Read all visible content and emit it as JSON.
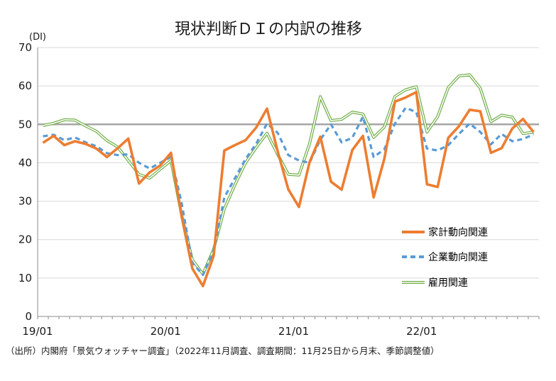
{
  "chart_data": {
    "type": "line",
    "title": "現状判断ＤＩの内訳の推移",
    "yunit": "(DI)",
    "xlabel": "",
    "ylabel": "",
    "ylim": [
      0,
      70
    ],
    "yticks": [
      0,
      10,
      20,
      30,
      40,
      50,
      60,
      70
    ],
    "xtick_labels": [
      "19/01",
      "20/01",
      "21/01",
      "22/01"
    ],
    "x": [
      "2019-01",
      "2019-02",
      "2019-03",
      "2019-04",
      "2019-05",
      "2019-06",
      "2019-07",
      "2019-08",
      "2019-09",
      "2019-10",
      "2019-11",
      "2019-12",
      "2020-01",
      "2020-02",
      "2020-03",
      "2020-04",
      "2020-05",
      "2020-06",
      "2020-07",
      "2020-08",
      "2020-09",
      "2020-10",
      "2020-11",
      "2020-12",
      "2021-01",
      "2021-02",
      "2021-03",
      "2021-04",
      "2021-05",
      "2021-06",
      "2021-07",
      "2021-08",
      "2021-09",
      "2021-10",
      "2021-11",
      "2021-12",
      "2022-01",
      "2022-02",
      "2022-03",
      "2022-04",
      "2022-05",
      "2022-06",
      "2022-07",
      "2022-08",
      "2022-09",
      "2022-10",
      "2022-11"
    ],
    "reference_line": 50,
    "grid": true,
    "legend_position": "right",
    "series": [
      {
        "name": "家計動向関連",
        "color": "#ed7d31",
        "style": "solid",
        "values": [
          45.2,
          47.0,
          44.6,
          45.6,
          44.9,
          43.7,
          41.5,
          43.8,
          46.3,
          34.6,
          37.5,
          39.3,
          42.6,
          26.0,
          12.5,
          7.9,
          15.8,
          43.2,
          44.6,
          45.9,
          49.2,
          54.1,
          43.0,
          33.1,
          28.5,
          40.2,
          46.8,
          35.1,
          33.0,
          43.3,
          47.0,
          31.0,
          41.0,
          55.9,
          57.0,
          58.4,
          34.4,
          33.7,
          46.5,
          49.5,
          53.8,
          53.4,
          42.6,
          43.8,
          48.9,
          51.4,
          48.0
        ]
      },
      {
        "name": "企業動向関連",
        "color": "#5b9bd5",
        "style": "dashed",
        "values": [
          46.9,
          47.3,
          45.9,
          46.6,
          45.3,
          44.3,
          42.5,
          42.0,
          42.2,
          40.0,
          38.5,
          40.0,
          41.5,
          29.5,
          14.0,
          10.8,
          17.0,
          31.0,
          36.0,
          41.0,
          45.0,
          50.2,
          47.8,
          42.0,
          40.6,
          40.0,
          46.0,
          50.0,
          45.3,
          46.5,
          52.0,
          41.5,
          43.5,
          50.2,
          54.3,
          53.2,
          43.7,
          43.2,
          44.6,
          47.5,
          50.2,
          48.0,
          44.8,
          47.5,
          45.6,
          46.2,
          47.4
        ]
      },
      {
        "name": "雇用関連",
        "color": "#70ad47",
        "style": "double",
        "values": [
          49.7,
          50.3,
          51.2,
          51.1,
          49.6,
          48.2,
          45.8,
          44.1,
          40.6,
          37.0,
          36.0,
          38.3,
          40.6,
          26.4,
          14.8,
          11.0,
          17.5,
          28.0,
          34.3,
          40.0,
          44.0,
          47.7,
          42.2,
          37.0,
          36.8,
          45.0,
          57.2,
          51.0,
          51.3,
          53.2,
          52.7,
          46.6,
          49.3,
          57.3,
          59.0,
          59.8,
          48.0,
          52.0,
          59.6,
          62.6,
          62.9,
          59.4,
          50.7,
          52.4,
          51.9,
          47.6,
          48.0
        ]
      }
    ]
  },
  "source": "（出所）内閣府「景気ウォッチャー調査」（2022年11月調査、調査期間：11月25日から月末、季節調整値）"
}
